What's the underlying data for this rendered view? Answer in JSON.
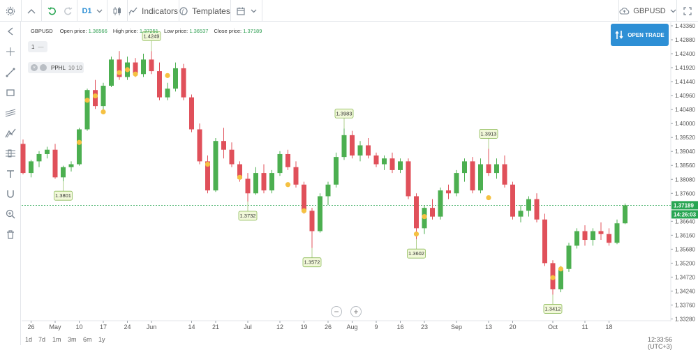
{
  "toolbar": {
    "timeframe": "D1",
    "indicators_label": "Indicators",
    "templates_label": "Templates",
    "symbol": "GBPUSD"
  },
  "ohlc": {
    "symbol": "GBPUSD",
    "open_label": "Open price:",
    "open": "1.36566",
    "high_label": "High price:",
    "high": "1.37251",
    "low_label": "Low price:",
    "low": "1.36537",
    "close_label": "Close price:",
    "close": "1.37189"
  },
  "overlay": {
    "panel_value": "1",
    "indicator_name": "PPHL",
    "indicator_params": "10 10"
  },
  "open_trade_label": "OPEN TRADE",
  "bottom": {
    "ranges": [
      "1d",
      "7d",
      "1m",
      "3m",
      "6m",
      "1y"
    ],
    "clock": "12:33:56 (UTC+3)"
  },
  "colors": {
    "up": "#4caf50",
    "down": "#e0505a",
    "marker": "#f5c142",
    "price_line": "#27a552",
    "accent": "#2d8fd5"
  },
  "chart_data": {
    "type": "candlestick",
    "instrument": "GBPUSD",
    "timeframe": "D1",
    "ylim": [
      1.3322,
      1.4348
    ],
    "y_ticks": [
      "1.43360",
      "1.42880",
      "1.42400",
      "1.41920",
      "1.41440",
      "1.40960",
      "1.40480",
      "1.40000",
      "1.39520",
      "1.39040",
      "1.38560",
      "1.38080",
      "1.37600",
      "1.36640",
      "1.36160",
      "1.35680",
      "1.35200",
      "1.34720",
      "1.34240",
      "1.33760",
      "1.33280"
    ],
    "x_ticks": [
      {
        "label": "26",
        "i": 1
      },
      {
        "label": "May",
        "i": 4
      },
      {
        "label": "10",
        "i": 7
      },
      {
        "label": "17",
        "i": 10
      },
      {
        "label": "24",
        "i": 13
      },
      {
        "label": "Jun",
        "i": 16
      },
      {
        "label": "14",
        "i": 21
      },
      {
        "label": "21",
        "i": 24
      },
      {
        "label": "Jul",
        "i": 28
      },
      {
        "label": "12",
        "i": 32
      },
      {
        "label": "19",
        "i": 35
      },
      {
        "label": "26",
        "i": 38
      },
      {
        "label": "Aug",
        "i": 41
      },
      {
        "label": "9",
        "i": 44
      },
      {
        "label": "16",
        "i": 47
      },
      {
        "label": "23",
        "i": 50
      },
      {
        "label": "Sep",
        "i": 54
      },
      {
        "label": "13",
        "i": 58
      },
      {
        "label": "20",
        "i": 61
      },
      {
        "label": "Oct",
        "i": 66
      },
      {
        "label": "11",
        "i": 70
      },
      {
        "label": "18",
        "i": 73
      }
    ],
    "current_price": "1.37189",
    "countdown": "14:26:03",
    "candles": [
      [
        1.393,
        1.3945,
        1.3825,
        1.383
      ],
      [
        1.383,
        1.3875,
        1.3815,
        1.387
      ],
      [
        1.387,
        1.3905,
        1.385,
        1.3895
      ],
      [
        1.3895,
        1.392,
        1.388,
        1.391
      ],
      [
        1.391,
        1.393,
        1.381,
        1.3815
      ],
      [
        1.3815,
        1.3855,
        1.3801,
        1.385
      ],
      [
        1.385,
        1.387,
        1.3835,
        1.386
      ],
      [
        1.386,
        1.3985,
        1.3855,
        1.398
      ],
      [
        1.398,
        1.412,
        1.3975,
        1.4115
      ],
      [
        1.4115,
        1.415,
        1.405,
        1.406
      ],
      [
        1.406,
        1.414,
        1.404,
        1.413
      ],
      [
        1.413,
        1.423,
        1.4125,
        1.422
      ],
      [
        1.422,
        1.4249,
        1.415,
        1.416
      ],
      [
        1.416,
        1.423,
        1.415,
        1.421
      ],
      [
        1.421,
        1.4225,
        1.416,
        1.417
      ],
      [
        1.417,
        1.424,
        1.416,
        1.422
      ],
      [
        1.422,
        1.4249,
        1.417,
        1.418
      ],
      [
        1.418,
        1.421,
        1.408,
        1.409
      ],
      [
        1.409,
        1.414,
        1.408,
        1.412
      ],
      [
        1.412,
        1.421,
        1.411,
        1.419
      ],
      [
        1.419,
        1.4205,
        1.408,
        1.409
      ],
      [
        1.409,
        1.41,
        1.397,
        1.398
      ],
      [
        1.398,
        1.4,
        1.386,
        1.387
      ],
      [
        1.387,
        1.389,
        1.376,
        1.377
      ],
      [
        1.377,
        1.395,
        1.3765,
        1.394
      ],
      [
        1.394,
        1.3985,
        1.388,
        1.391
      ],
      [
        1.391,
        1.3935,
        1.385,
        1.386
      ],
      [
        1.386,
        1.387,
        1.38,
        1.381
      ],
      [
        1.381,
        1.383,
        1.3732,
        1.376
      ],
      [
        1.376,
        1.385,
        1.3755,
        1.383
      ],
      [
        1.383,
        1.386,
        1.376,
        1.377
      ],
      [
        1.377,
        1.384,
        1.376,
        1.383
      ],
      [
        1.383,
        1.3905,
        1.382,
        1.3895
      ],
      [
        1.3895,
        1.391,
        1.384,
        1.385
      ],
      [
        1.385,
        1.387,
        1.378,
        1.379
      ],
      [
        1.379,
        1.38,
        1.369,
        1.37
      ],
      [
        1.37,
        1.371,
        1.3572,
        1.363
      ],
      [
        1.363,
        1.376,
        1.3625,
        1.375
      ],
      [
        1.375,
        1.38,
        1.372,
        1.379
      ],
      [
        1.379,
        1.39,
        1.378,
        1.3885
      ],
      [
        1.3885,
        1.3983,
        1.3875,
        1.396
      ],
      [
        1.396,
        1.3975,
        1.388,
        1.389
      ],
      [
        1.389,
        1.394,
        1.387,
        1.3925
      ],
      [
        1.3925,
        1.395,
        1.388,
        1.389
      ],
      [
        1.389,
        1.39,
        1.385,
        1.386
      ],
      [
        1.386,
        1.389,
        1.384,
        1.388
      ],
      [
        1.388,
        1.39,
        1.383,
        1.384
      ],
      [
        1.384,
        1.388,
        1.383,
        1.387
      ],
      [
        1.387,
        1.388,
        1.374,
        1.375
      ],
      [
        1.375,
        1.376,
        1.3602,
        1.364
      ],
      [
        1.364,
        1.372,
        1.362,
        1.371
      ],
      [
        1.371,
        1.374,
        1.367,
        1.368
      ],
      [
        1.368,
        1.378,
        1.367,
        1.377
      ],
      [
        1.377,
        1.379,
        1.374,
        1.376
      ],
      [
        1.376,
        1.384,
        1.375,
        1.383
      ],
      [
        1.383,
        1.388,
        1.38,
        1.387
      ],
      [
        1.387,
        1.3885,
        1.376,
        1.377
      ],
      [
        1.377,
        1.388,
        1.376,
        1.386
      ],
      [
        1.386,
        1.3913,
        1.382,
        1.383
      ],
      [
        1.383,
        1.388,
        1.381,
        1.386
      ],
      [
        1.386,
        1.389,
        1.378,
        1.379
      ],
      [
        1.379,
        1.38,
        1.367,
        1.368
      ],
      [
        1.368,
        1.372,
        1.366,
        1.37
      ],
      [
        1.37,
        1.375,
        1.368,
        1.374
      ],
      [
        1.374,
        1.376,
        1.366,
        1.367
      ],
      [
        1.367,
        1.369,
        1.351,
        1.352
      ],
      [
        1.352,
        1.353,
        1.3412,
        1.343
      ],
      [
        1.343,
        1.351,
        1.342,
        1.35
      ],
      [
        1.35,
        1.359,
        1.349,
        1.358
      ],
      [
        1.358,
        1.364,
        1.357,
        1.363
      ],
      [
        1.363,
        1.365,
        1.358,
        1.36
      ],
      [
        1.36,
        1.364,
        1.358,
        1.363
      ],
      [
        1.363,
        1.366,
        1.36,
        1.362
      ],
      [
        1.362,
        1.364,
        1.358,
        1.359
      ],
      [
        1.359,
        1.367,
        1.3585,
        1.3657
      ],
      [
        1.3657,
        1.3725,
        1.3654,
        1.3719
      ]
    ],
    "markers": [
      {
        "i": 7,
        "price": 1.3935
      },
      {
        "i": 8,
        "price": 1.408
      },
      {
        "i": 9,
        "price": 1.4095
      },
      {
        "i": 10,
        "price": 1.404
      },
      {
        "i": 12,
        "price": 1.4175
      },
      {
        "i": 13,
        "price": 1.4185
      },
      {
        "i": 14,
        "price": 1.417
      },
      {
        "i": 18,
        "price": 1.4165
      },
      {
        "i": 23,
        "price": 1.386
      },
      {
        "i": 27,
        "price": 1.3815
      },
      {
        "i": 33,
        "price": 1.379
      },
      {
        "i": 35,
        "price": 1.37
      },
      {
        "i": 49,
        "price": 1.362
      },
      {
        "i": 50,
        "price": 1.368
      },
      {
        "i": 58,
        "price": 1.3745
      },
      {
        "i": 66,
        "price": 1.347
      },
      {
        "i": 67,
        "price": 1.35
      }
    ],
    "labels": [
      {
        "text": "1.3801",
        "i": 5,
        "price": 1.3801,
        "pos": "below"
      },
      {
        "text": "1.4249",
        "i": 16,
        "price": 1.4249,
        "pos": "above"
      },
      {
        "text": "1.3732",
        "i": 28,
        "price": 1.3732,
        "pos": "below"
      },
      {
        "text": "1.3572",
        "i": 36,
        "price": 1.3572,
        "pos": "below"
      },
      {
        "text": "1.3983",
        "i": 40,
        "price": 1.3983,
        "pos": "above"
      },
      {
        "text": "1.3602",
        "i": 49,
        "price": 1.3602,
        "pos": "below"
      },
      {
        "text": "1.3913",
        "i": 58,
        "price": 1.3913,
        "pos": "above"
      },
      {
        "text": "1.3412",
        "i": 66,
        "price": 1.3412,
        "pos": "below"
      }
    ]
  }
}
